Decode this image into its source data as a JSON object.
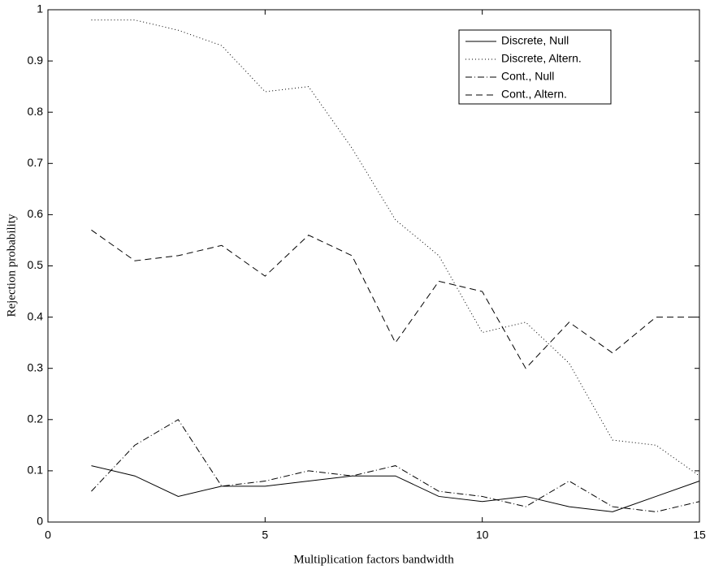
{
  "chart_data": {
    "type": "line",
    "xlabel": "Multiplication factors bandwidth",
    "ylabel": "Rejection probability",
    "x": [
      1,
      2,
      3,
      4,
      5,
      6,
      7,
      8,
      9,
      10,
      11,
      12,
      13,
      14,
      15
    ],
    "xlim": [
      0,
      15
    ],
    "xticks": [
      0,
      5,
      10,
      15
    ],
    "ylim": [
      0,
      1
    ],
    "yticks": [
      0,
      0.1,
      0.2,
      0.3,
      0.4,
      0.5,
      0.6,
      0.7,
      0.8,
      0.9,
      1
    ],
    "legend": "upper right",
    "series": [
      {
        "name": "Discrete, Null",
        "color": "#000000",
        "linestyle": "solid",
        "values": [
          0.11,
          0.09,
          0.05,
          0.07,
          0.07,
          0.08,
          0.09,
          0.09,
          0.05,
          0.04,
          0.05,
          0.03,
          0.02,
          0.05,
          0.08
        ]
      },
      {
        "name": "Discrete, Altern.",
        "color": "#000000",
        "linestyle": "dotted",
        "values": [
          0.98,
          0.98,
          0.96,
          0.93,
          0.84,
          0.85,
          0.73,
          0.59,
          0.52,
          0.37,
          0.39,
          0.31,
          0.16,
          0.15,
          0.09
        ]
      },
      {
        "name": "Cont., Null",
        "color": "#000000",
        "linestyle": "dashdot",
        "values": [
          0.06,
          0.15,
          0.2,
          0.07,
          0.08,
          0.1,
          0.09,
          0.11,
          0.06,
          0.05,
          0.03,
          0.08,
          0.03,
          0.02,
          0.04
        ]
      },
      {
        "name": "Cont., Altern.",
        "color": "#000000",
        "linestyle": "dashed",
        "values": [
          0.57,
          0.51,
          0.52,
          0.54,
          0.48,
          0.56,
          0.52,
          0.35,
          0.47,
          0.45,
          0.3,
          0.39,
          0.33,
          0.4,
          0.4
        ]
      }
    ]
  }
}
